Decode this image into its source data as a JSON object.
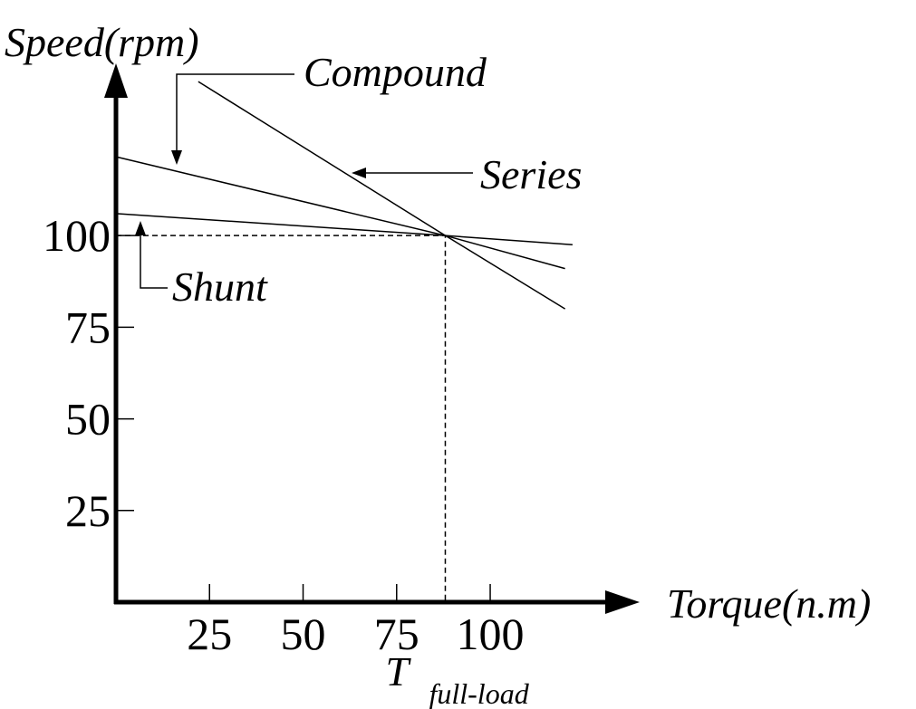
{
  "chart_data": {
    "type": "line",
    "y_label": "Speed(rpm)",
    "x_label": "Torque(n.m)",
    "xlim": [
      0,
      138
    ],
    "ylim": [
      0,
      145
    ],
    "xticks": [
      25,
      50,
      75,
      100
    ],
    "yticks": [
      25,
      50,
      75,
      100
    ],
    "series": [
      {
        "name": "Compound",
        "color": "#000000",
        "x": [
          0,
          88,
          120
        ],
        "values": [
          121.5,
          100,
          91
        ]
      },
      {
        "name": "Series",
        "color": "#000000",
        "x": [
          22,
          88,
          120
        ],
        "values": [
          142,
          100,
          80
        ]
      },
      {
        "name": "Shunt",
        "color": "#000000",
        "x": [
          0,
          88,
          122
        ],
        "values": [
          106,
          100,
          97.5
        ]
      }
    ],
    "full_load": {
      "x": 88,
      "y": 100,
      "label": "T",
      "subscript": "full-load"
    }
  }
}
